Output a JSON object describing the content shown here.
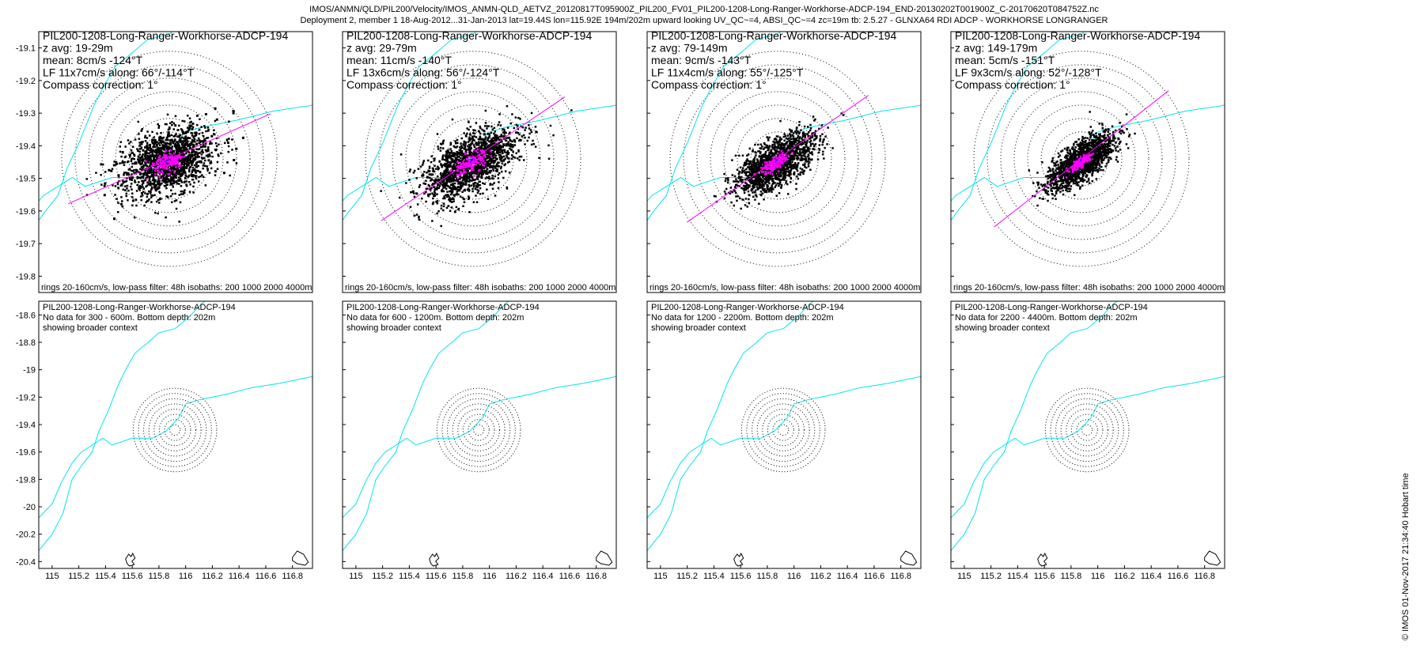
{
  "header": {
    "line1": "IMOS/ANMN/QLD/PIL200/Velocity/IMOS_ANMN-QLD_AETVZ_20120817T095900Z_PIL200_FV01_PIL200-1208-Long-Ranger-Workhorse-ADCP-194_END-20130202T001900Z_C-20170620T084752Z.nc",
    "line2": "Deployment 2, member 1 18-Aug-2012...31-Jan-2013 lat=19.44S lon=115.92E 194m/202m upward looking UV_QC~=4, ABSI_QC~=4 zc=19m tb: 2.5.27 - GLNXA64 RDI ADCP - WORKHORSE LONGRANGER"
  },
  "stamp": "© IMOS 01-Nov-2017 21:34:40 Hobart time",
  "chart_data": [
    {
      "type": "scatter",
      "panel": "top-1",
      "annotations": [
        "PIL200-1208-Long-Ranger-Workhorse-ADCP-194",
        "z avg: 19-29m",
        "mean: 8cm/s -124°T",
        "LF 11x7cm/s along: 66°/-114°T",
        "Compass correction: 1°"
      ],
      "footer": "rings 20-160cm/s, low-pass filter: 48h isobaths: 200 1000 2000 4000m",
      "ylim": [
        -19.85,
        -19.05
      ],
      "yticks": [
        -19.1,
        -19.2,
        -19.3,
        -19.4,
        -19.5,
        -19.6,
        -19.7,
        -19.8
      ],
      "center": [
        115.92,
        -19.44
      ],
      "mean_vector_cms": 8,
      "mean_dir_degT": -124,
      "lf_major_cms": 11,
      "lf_minor_cms": 7,
      "along_dir_degT": 66
    },
    {
      "type": "scatter",
      "panel": "top-2",
      "annotations": [
        "PIL200-1208-Long-Ranger-Workhorse-ADCP-194",
        "z avg: 29-79m",
        "mean: 11cm/s -140°T",
        "LF 13x6cm/s along: 56°/-124°T",
        "Compass correction: 1°"
      ],
      "footer": "rings 20-160cm/s, low-pass filter: 48h isobaths: 200 1000 2000 4000m",
      "center": [
        115.92,
        -19.44
      ],
      "mean_vector_cms": 11,
      "mean_dir_degT": -140,
      "lf_major_cms": 13,
      "lf_minor_cms": 6,
      "along_dir_degT": 56
    },
    {
      "type": "scatter",
      "panel": "top-3",
      "annotations": [
        "PIL200-1208-Long-Ranger-Workhorse-ADCP-194",
        "z avg: 79-149m",
        "mean: 9cm/s -143°T",
        "LF 11x4cm/s along: 55°/-125°T",
        "Compass correction: 1°"
      ],
      "footer": "rings 20-160cm/s, low-pass filter: 48h isobaths: 200 1000 2000 4000m",
      "center": [
        115.92,
        -19.44
      ],
      "mean_vector_cms": 9,
      "mean_dir_degT": -143,
      "lf_major_cms": 11,
      "lf_minor_cms": 4,
      "along_dir_degT": 55
    },
    {
      "type": "scatter",
      "panel": "top-4",
      "annotations": [
        "PIL200-1208-Long-Ranger-Workhorse-ADCP-194",
        "z avg: 149-179m",
        "mean: 5cm/s -151°T",
        "LF 9x3cm/s along: 52°/-128°T",
        "Compass correction: 1°"
      ],
      "footer": "rings 20-160cm/s, low-pass filter: 48h isobaths: 200 1000 2000 4000m",
      "center": [
        115.92,
        -19.44
      ],
      "mean_vector_cms": 5,
      "mean_dir_degT": -151,
      "lf_major_cms": 9,
      "lf_minor_cms": 3,
      "along_dir_degT": 52
    },
    {
      "type": "map",
      "panel": "bottom-1",
      "annotations": [
        "PIL200-1208-Long-Ranger-Workhorse-ADCP-194",
        "No data for 300 - 600m. Bottom depth: 202m",
        "showing broader context"
      ],
      "xlim": [
        114.9,
        116.95
      ],
      "ylim": [
        -20.45,
        -18.5
      ],
      "xticks": [
        115,
        115.2,
        115.4,
        115.6,
        115.8,
        116,
        116.2,
        116.4,
        116.6,
        116.8
      ],
      "yticks": [
        -18.6,
        -18.8,
        -19,
        -19.2,
        -19.4,
        -19.6,
        -19.8,
        -20,
        -20.2,
        -20.4
      ],
      "xtick_labels": [
        "115",
        "115.2",
        "115.4",
        "115.6",
        "115.8",
        "116",
        "116.2",
        "116.4",
        "116.6",
        "116.8"
      ],
      "ytick_labels": [
        "-18.6",
        "-18.8",
        "-19",
        "-19.2",
        "-19.4",
        "-19.6",
        "-19.8",
        "-20",
        "-20.2",
        "-20.4"
      ]
    },
    {
      "type": "map",
      "panel": "bottom-2",
      "annotations": [
        "PIL200-1208-Long-Ranger-Workhorse-ADCP-194",
        "No data for 600 - 1200m. Bottom depth: 202m",
        "showing broader context"
      ],
      "xtick_labels": [
        "115",
        "115.2",
        "115.4",
        "115.6",
        "115.8",
        "116",
        "116.2",
        "116.4",
        "116.6",
        "116.8"
      ]
    },
    {
      "type": "map",
      "panel": "bottom-3",
      "annotations": [
        "PIL200-1208-Long-Ranger-Workhorse-ADCP-194",
        "No data for 1200 - 2200m. Bottom depth: 202m",
        "showing broader context"
      ],
      "xtick_labels": [
        "115",
        "115.2",
        "115.4",
        "115.6",
        "115.8",
        "116",
        "116.2",
        "116.4",
        "116.6",
        "116.8"
      ]
    },
    {
      "type": "map",
      "panel": "bottom-4",
      "annotations": [
        "PIL200-1208-Long-Ranger-Workhorse-ADCP-194",
        "No data for 2200 - 4400m. Bottom depth: 202m",
        "showing broader context"
      ],
      "xtick_labels": [
        "115",
        "115.2",
        "115.4",
        "115.6",
        "115.8",
        "116",
        "116.2",
        "116.4",
        "116.6",
        "116.8"
      ]
    }
  ],
  "top_ytick_labels": [
    "-19.1",
    "-19.2",
    "-19.3",
    "-19.4",
    "-19.5",
    "-19.6",
    "-19.7",
    "-19.8"
  ],
  "rings_cms": [
    20,
    40,
    60,
    80,
    100,
    120,
    140,
    160
  ],
  "colors": {
    "isobath": "#00e5ee",
    "along_axis": "#ff00ff",
    "lf_points": "#ff00ff",
    "raw_points": "#000000",
    "rings": "#000000"
  }
}
